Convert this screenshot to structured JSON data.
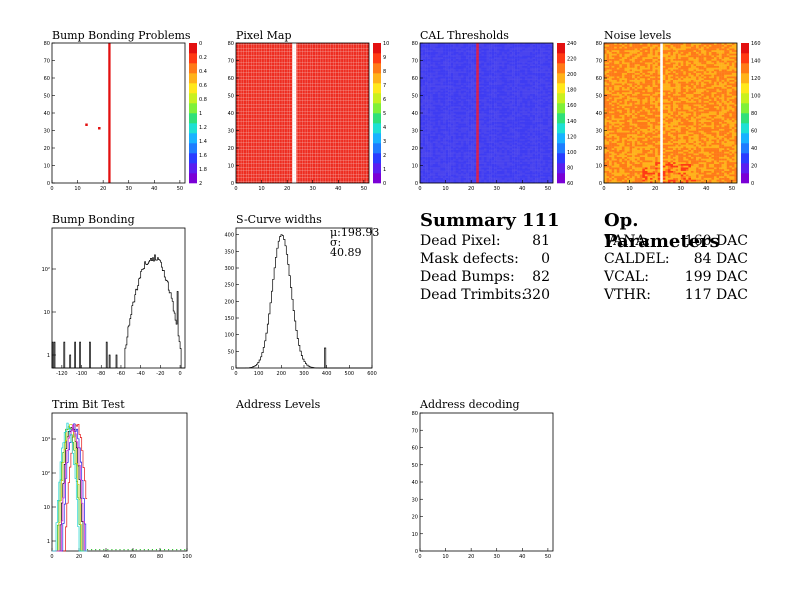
{
  "colors": {
    "palette": [
      "#7a00d6",
      "#5a1ff0",
      "#2a3cff",
      "#1f7cff",
      "#19b2ff",
      "#1ee0d4",
      "#2fe07a",
      "#7ff03a",
      "#c8f020",
      "#ffe81c",
      "#ffb21a",
      "#ff7a18",
      "#ff3a14",
      "#e31010"
    ],
    "line": "#000000",
    "bump_dot": "#e31010",
    "trim_series": [
      "#000000",
      "#e31010",
      "#1fb81f",
      "#1f1fe3",
      "#c8c800",
      "#d41fd4",
      "#1fd4d4"
    ]
  },
  "panels": {
    "p1": {
      "title": "Bump Bonding Problems"
    },
    "p2": {
      "title": "Pixel Map"
    },
    "p3": {
      "title": "CAL Thresholds"
    },
    "p4": {
      "title": "Noise levels"
    },
    "p5": {
      "title": "Bump Bonding"
    },
    "p6": {
      "title": "S-Curve widths",
      "mu": "μ:198.93",
      "sigma": "σ: 40.89"
    },
    "p9": {
      "title": "Trim Bit Test"
    },
    "p10": {
      "title": "Address Levels"
    },
    "p11": {
      "title": "Address decoding"
    }
  },
  "summary": {
    "title": "Summary",
    "total": "111",
    "rows": [
      {
        "label": "Dead Pixel:",
        "value": "81"
      },
      {
        "label": "Mask defects:",
        "value": "0"
      },
      {
        "label": "Dead Bumps:",
        "value": "82"
      },
      {
        "label": "Dead Trimbits:",
        "value": "320"
      }
    ]
  },
  "op_params": {
    "title": "Op. Parameters",
    "rows": [
      {
        "label": "VANA:",
        "value": "160 DAC"
      },
      {
        "label": "CALDEL:",
        "value": "84 DAC"
      },
      {
        "label": "VCAL:",
        "value": "199 DAC"
      },
      {
        "label": "VTHR:",
        "value": "117 DAC"
      }
    ]
  },
  "chart_data": [
    {
      "type": "heatmap",
      "title": "Bump Bonding Problems",
      "xlim": [
        0,
        52
      ],
      "ylim": [
        0,
        80
      ],
      "x_ticks": [
        "0",
        "10",
        "20",
        "30",
        "40",
        "50"
      ],
      "y_ticks": [
        "0",
        "10",
        "20",
        "30",
        "40",
        "50",
        "60",
        "70",
        "80"
      ],
      "z_ticks": [
        "0",
        "0.2",
        "0.4",
        "0.6",
        "0.8",
        "1",
        "1.2",
        "1.4",
        "1.6",
        "1.8",
        "2"
      ],
      "dead_column": 22,
      "points": [
        [
          13,
          34
        ],
        [
          18,
          32
        ]
      ]
    },
    {
      "type": "heatmap",
      "title": "Pixel Map",
      "xlim": [
        0,
        52
      ],
      "ylim": [
        0,
        80
      ],
      "x_ticks": [
        "0",
        "10",
        "20",
        "30",
        "40",
        "50"
      ],
      "y_ticks": [
        "0",
        "10",
        "20",
        "30",
        "40",
        "50",
        "60",
        "70",
        "80"
      ],
      "z_ticks": [
        "0",
        "1",
        "2",
        "3",
        "4",
        "5",
        "6",
        "7",
        "8",
        "9",
        "10"
      ],
      "fill_level": 10,
      "empty_column": 22
    },
    {
      "type": "heatmap",
      "title": "CAL Thresholds",
      "xlim": [
        0,
        52
      ],
      "ylim": [
        0,
        80
      ],
      "x_ticks": [
        "0",
        "10",
        "20",
        "30",
        "40",
        "50"
      ],
      "y_ticks": [
        "0",
        "10",
        "20",
        "30",
        "40",
        "50",
        "60",
        "70",
        "80"
      ],
      "z_ticks": [
        "60",
        "80",
        "100",
        "120",
        "140",
        "160",
        "180",
        "200",
        "220",
        "240"
      ],
      "typical": 90,
      "hot_column": 22
    },
    {
      "type": "heatmap",
      "title": "Noise levels",
      "xlim": [
        0,
        52
      ],
      "ylim": [
        0,
        80
      ],
      "x_ticks": [
        "0",
        "10",
        "20",
        "30",
        "40",
        "50"
      ],
      "y_ticks": [
        "0",
        "10",
        "20",
        "30",
        "40",
        "50",
        "60",
        "70",
        "80"
      ],
      "z_ticks": [
        "0",
        "20",
        "40",
        "60",
        "80",
        "100",
        "120",
        "140",
        "160"
      ],
      "typical": 130,
      "empty_column": 22
    },
    {
      "type": "histogram",
      "title": "Bump Bonding",
      "log_y": true,
      "x_ticks": [
        "-120",
        "-100",
        "-80",
        "-60",
        "-40",
        "-20",
        "0"
      ],
      "y_ticks": [
        "1",
        "10",
        "10²"
      ],
      "xlim": [
        -130,
        5
      ],
      "peak_center": -28,
      "peak_height": 220
    },
    {
      "type": "histogram",
      "title": "S-Curve widths",
      "x_ticks": [
        "0",
        "100",
        "200",
        "300",
        "400",
        "500",
        "600"
      ],
      "y_ticks": [
        "0",
        "50",
        "100",
        "150",
        "200",
        "250",
        "300",
        "350",
        "400"
      ],
      "xlim": [
        0,
        600
      ],
      "ylim": [
        0,
        420
      ],
      "mean": 198.93,
      "sigma": 40.89
    },
    {
      "type": "histogram",
      "title": "Trim Bit Test",
      "log_y": true,
      "x_ticks": [
        "0",
        "20",
        "40",
        "60",
        "80",
        "100"
      ],
      "y_ticks": [
        "1",
        "10",
        "10²",
        "10³"
      ],
      "xlim": [
        0,
        100
      ]
    },
    {
      "type": "heatmap",
      "title": "Address decoding",
      "xlim": [
        0,
        52
      ],
      "ylim": [
        0,
        80
      ],
      "x_ticks": [
        "0",
        "10",
        "20",
        "30",
        "40",
        "50"
      ],
      "y_ticks": [
        "0",
        "10",
        "20",
        "30",
        "40",
        "50",
        "60",
        "70",
        "80"
      ]
    }
  ]
}
